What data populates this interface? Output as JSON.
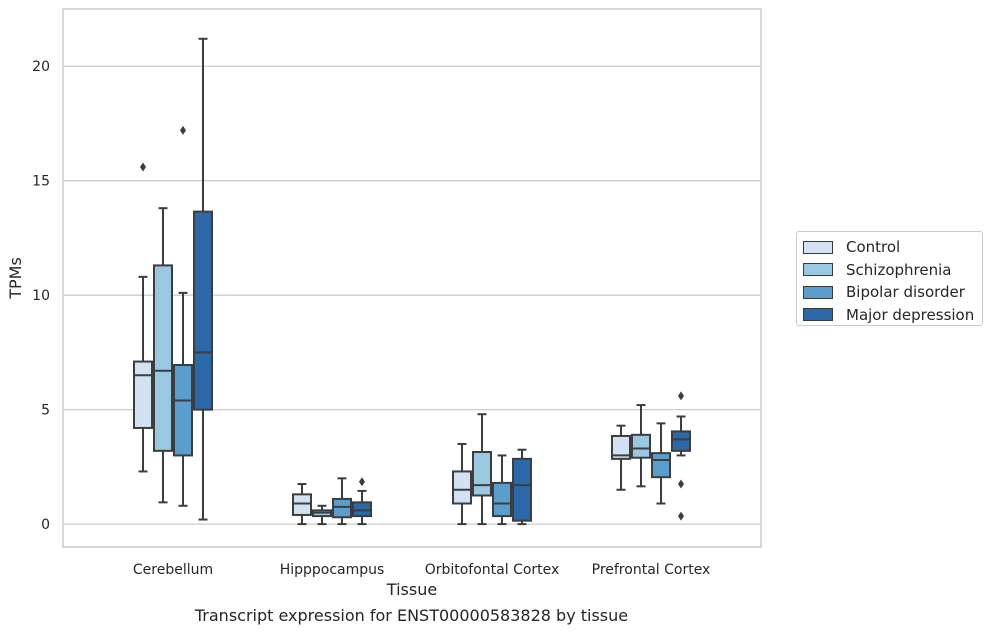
{
  "chart_data": {
    "type": "box",
    "title": "",
    "xlabel": "Tissue",
    "ylabel": "TPMs",
    "caption": "Transcript expression for ENST00000583828 by tissue",
    "categories": [
      "Cerebellum",
      "Hipppocampus",
      "Orbitofontal Cortex",
      "Prefrontal Cortex"
    ],
    "ylim": [
      -1,
      22.5
    ],
    "yticks": [
      0,
      5,
      10,
      15,
      20
    ],
    "grid": true,
    "legend_position": "right",
    "series": [
      {
        "name": "Control",
        "color": "#d1e2f3",
        "boxes": [
          {
            "min": 2.3,
            "q1": 4.2,
            "median": 6.5,
            "q3": 7.1,
            "max": 10.8,
            "outliers": [
              15.6
            ]
          },
          {
            "min": 0.0,
            "q1": 0.4,
            "median": 0.9,
            "q3": 1.3,
            "max": 1.75,
            "outliers": []
          },
          {
            "min": 0.0,
            "q1": 0.9,
            "median": 1.5,
            "q3": 2.3,
            "max": 3.5,
            "outliers": []
          },
          {
            "min": 1.5,
            "q1": 2.85,
            "median": 3.0,
            "q3": 3.85,
            "max": 4.3,
            "outliers": []
          }
        ]
      },
      {
        "name": "Schizophrenia",
        "color": "#9ac8e0",
        "boxes": [
          {
            "min": 0.95,
            "q1": 3.2,
            "median": 6.7,
            "q3": 11.3,
            "max": 13.8,
            "outliers": []
          },
          {
            "min": 0.0,
            "q1": 0.35,
            "median": 0.5,
            "q3": 0.6,
            "max": 0.8,
            "outliers": []
          },
          {
            "min": 0.0,
            "q1": 1.25,
            "median": 1.7,
            "q3": 3.15,
            "max": 4.8,
            "outliers": []
          },
          {
            "min": 1.65,
            "q1": 2.9,
            "median": 3.3,
            "q3": 3.9,
            "max": 5.2,
            "outliers": []
          }
        ]
      },
      {
        "name": "Bipolar disorder",
        "color": "#5a9ecd",
        "boxes": [
          {
            "min": 0.8,
            "q1": 3.0,
            "median": 5.4,
            "q3": 6.95,
            "max": 10.1,
            "outliers": [
              17.2
            ]
          },
          {
            "min": 0.0,
            "q1": 0.3,
            "median": 0.75,
            "q3": 1.1,
            "max": 2.0,
            "outliers": []
          },
          {
            "min": 0.0,
            "q1": 0.35,
            "median": 0.9,
            "q3": 1.8,
            "max": 3.0,
            "outliers": []
          },
          {
            "min": 0.9,
            "q1": 2.05,
            "median": 2.8,
            "q3": 3.1,
            "max": 4.4,
            "outliers": []
          }
        ]
      },
      {
        "name": "Major depression",
        "color": "#2b69ab",
        "boxes": [
          {
            "min": 0.2,
            "q1": 5.0,
            "median": 7.5,
            "q3": 13.65,
            "max": 21.2,
            "outliers": []
          },
          {
            "min": 0.0,
            "q1": 0.35,
            "median": 0.6,
            "q3": 0.95,
            "max": 1.45,
            "outliers": [
              1.85
            ]
          },
          {
            "min": 0.0,
            "q1": 0.15,
            "median": 1.7,
            "q3": 2.85,
            "max": 3.25,
            "outliers": []
          },
          {
            "min": 3.0,
            "q1": 3.2,
            "median": 3.7,
            "q3": 4.05,
            "max": 4.7,
            "outliers": [
              5.6,
              1.75,
              0.35
            ]
          }
        ]
      }
    ]
  }
}
